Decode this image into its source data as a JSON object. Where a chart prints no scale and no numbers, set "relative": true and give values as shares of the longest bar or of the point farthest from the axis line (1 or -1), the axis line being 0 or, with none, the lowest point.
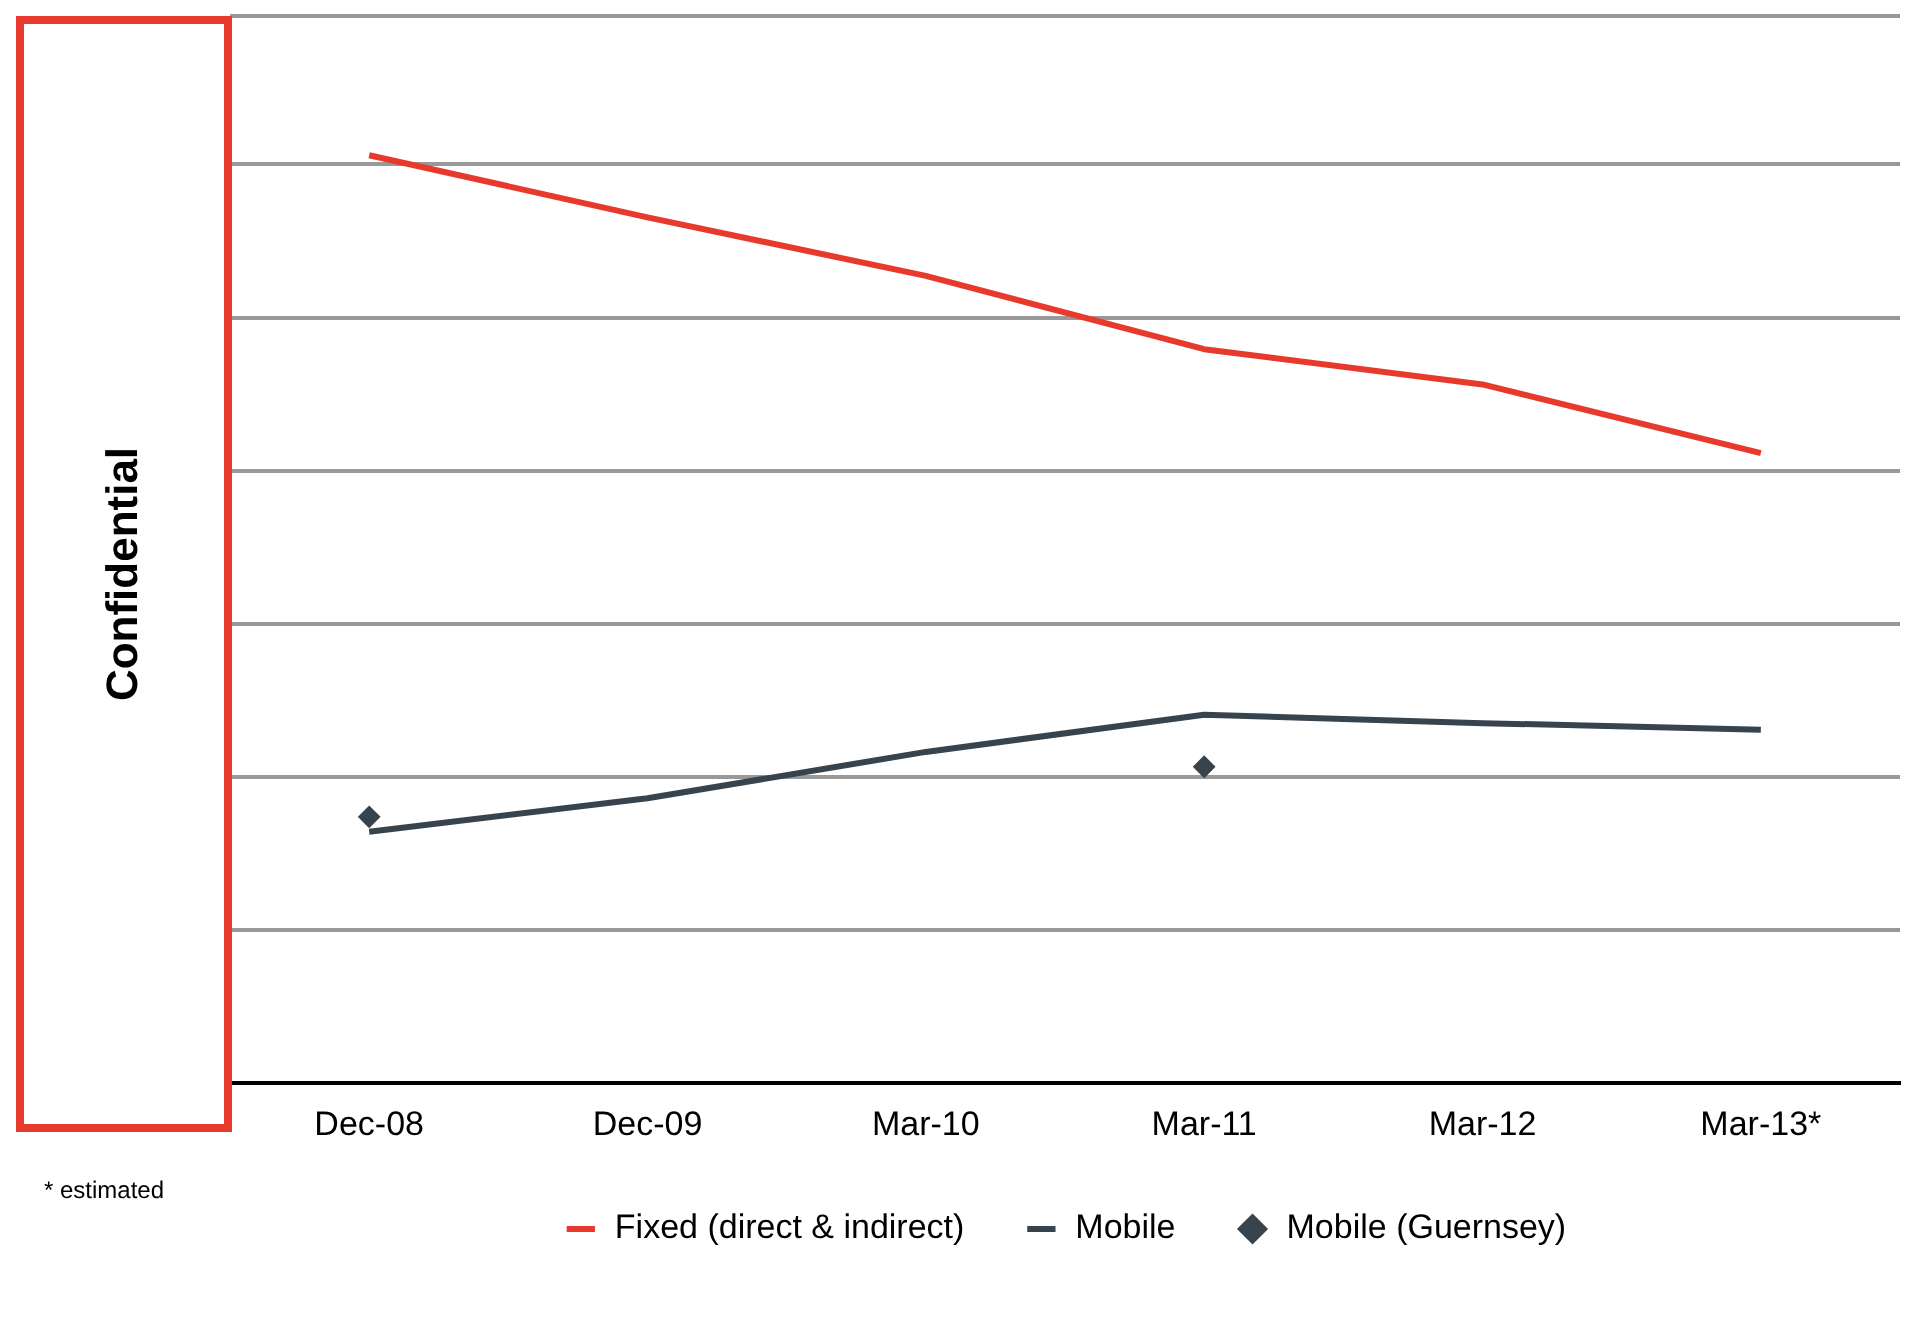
{
  "chart_data": {
    "type": "line",
    "relative": true,
    "categories": [
      "Dec-08",
      "Dec-09",
      "Mar-10",
      "Mar-11",
      "Mar-12",
      "Mar-13*"
    ],
    "series": [
      {
        "name": "Fixed (direct & indirect)",
        "color": "#e8392d",
        "values": [
          1,
          0.933,
          0.87,
          0.791,
          0.753,
          0.679
        ],
        "marker": "none"
      },
      {
        "name": "Mobile",
        "color": "#37434d",
        "values": [
          0.271,
          0.307,
          0.357,
          0.397,
          0.388,
          0.381
        ],
        "marker": "none"
      },
      {
        "name": "Mobile (Guernsey)",
        "type": "scatter",
        "color": "#37434d",
        "x": [
          "Dec-08",
          "Mar-11"
        ],
        "values": [
          0.287,
          0.341
        ]
      }
    ],
    "grid": "y",
    "legend": "bottom",
    "marker": "diamond",
    "line_style": "solid",
    "annotations": [
      "Confidential",
      "* estimated"
    ]
  }
}
